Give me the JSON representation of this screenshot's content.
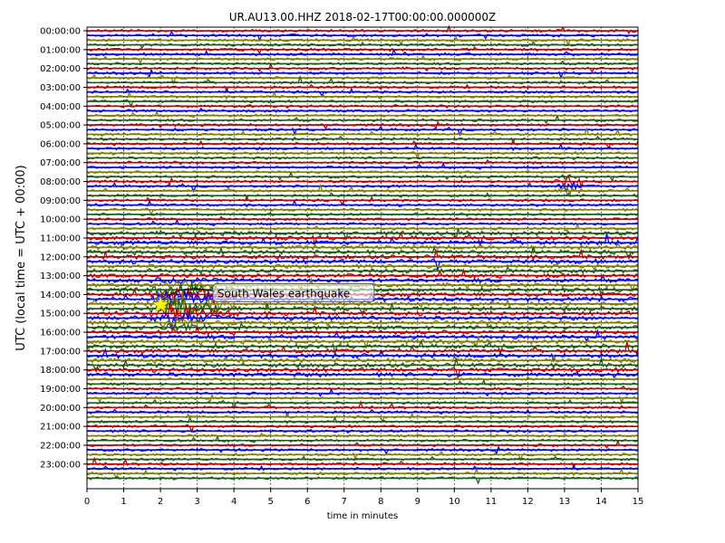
{
  "chart_data": {
    "type": "line",
    "title": "UR.AU13.00.HHZ  2018-02-17T00:00:00.000000Z",
    "xlabel": "time in minutes",
    "ylabel": "UTC (local time = UTC + 00:00)",
    "xlim": [
      0,
      15
    ],
    "x_ticks": [
      "0",
      "1",
      "2",
      "3",
      "4",
      "5",
      "6",
      "7",
      "8",
      "9",
      "10",
      "11",
      "12",
      "13",
      "14",
      "15"
    ],
    "y_ticks": [
      "00:00:00",
      "01:00:00",
      "02:00:00",
      "03:00:00",
      "04:00:00",
      "05:00:00",
      "06:00:00",
      "07:00:00",
      "08:00:00",
      "09:00:00",
      "10:00:00",
      "11:00:00",
      "12:00:00",
      "13:00:00",
      "14:00:00",
      "15:00:00",
      "16:00:00",
      "17:00:00",
      "18:00:00",
      "19:00:00",
      "20:00:00",
      "21:00:00",
      "22:00:00",
      "23:00:00"
    ],
    "traces_per_hour": 4,
    "trace_colors": [
      "#8b0000",
      "#00008b",
      "#556b2f",
      "#0b3d0b"
    ],
    "grid": true,
    "events": [
      {
        "name": "earthquake-marker",
        "time_min": 2.0,
        "hour": 14.55,
        "label": "South Wales earthquake",
        "label_time_min": 3.5,
        "label_hour": 13.95
      },
      {
        "name": "local-burst",
        "time_min": 13.1,
        "hour": 8.2
      }
    ],
    "annotation": "South Wales earthquake"
  },
  "colors": {
    "trace_red": "#c00000",
    "trace_blue": "#0000ff",
    "trace_olive": "#808000",
    "trace_green": "#1a5c1a",
    "marker_star": "#ffff00"
  }
}
